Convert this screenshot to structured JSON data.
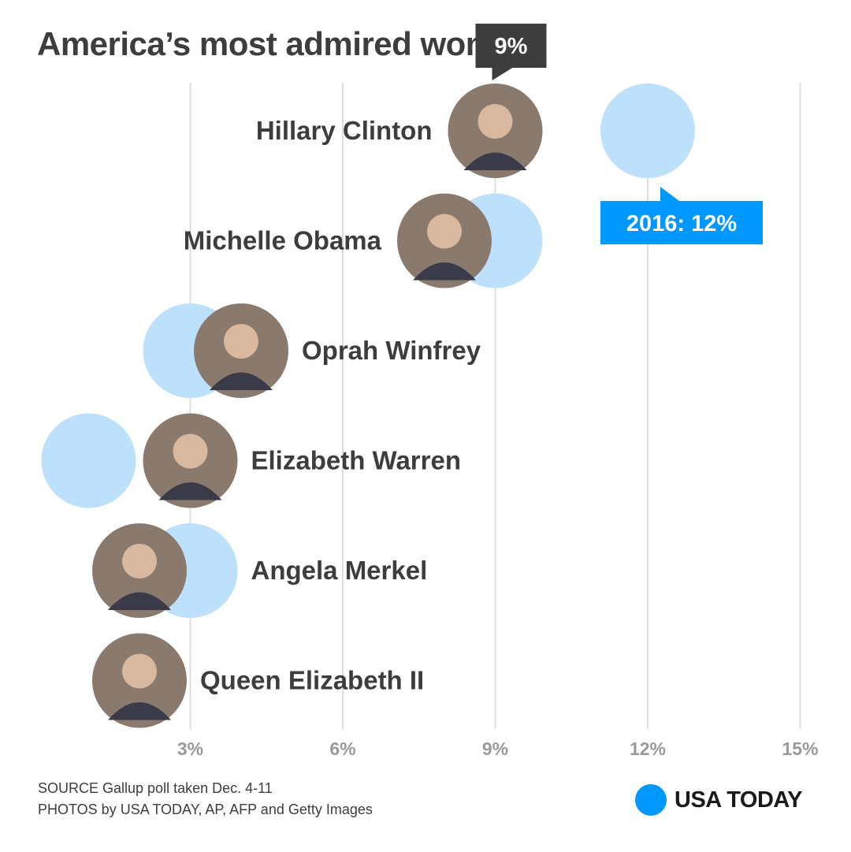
{
  "header": {
    "title": "America’s most admired women"
  },
  "chart_data": {
    "type": "scatter",
    "title": "America’s most admired women",
    "x_ticks": [
      "3%",
      "6%",
      "9%",
      "12%",
      "15%"
    ],
    "x_tick_values": [
      3,
      6,
      9,
      12,
      15
    ],
    "xlim": [
      0.5,
      15.5
    ],
    "categories": [
      "Hillary Clinton",
      "Michelle Obama",
      "Oprah Winfrey",
      "Elizabeth Warren",
      "Angela Merkel",
      "Queen Elizabeth II"
    ],
    "series": [
      {
        "name": "",
        "values": [
          9,
          8,
          4,
          3,
          2,
          2
        ]
      },
      {
        "name": "2016",
        "values": [
          12,
          9,
          3,
          1,
          3,
          null
        ]
      }
    ],
    "annotations": {
      "current_callout": "9%",
      "prior_callout": "2016: 12%"
    },
    "colors": {
      "prior_circle": "#bde0fb",
      "callout_current_bg": "#3d3d3d",
      "callout_prior_bg": "#0098ff",
      "gridline": "#dedede",
      "photo_placeholder": "#8a7a6e"
    },
    "grid": true
  },
  "footer": {
    "source": "SOURCE Gallup poll taken Dec. 4-11",
    "photos": "PHOTOS by USA TODAY, AP, AFP and Getty Images"
  },
  "logo": {
    "text": "USA TODAY",
    "color": "#0098ff"
  }
}
